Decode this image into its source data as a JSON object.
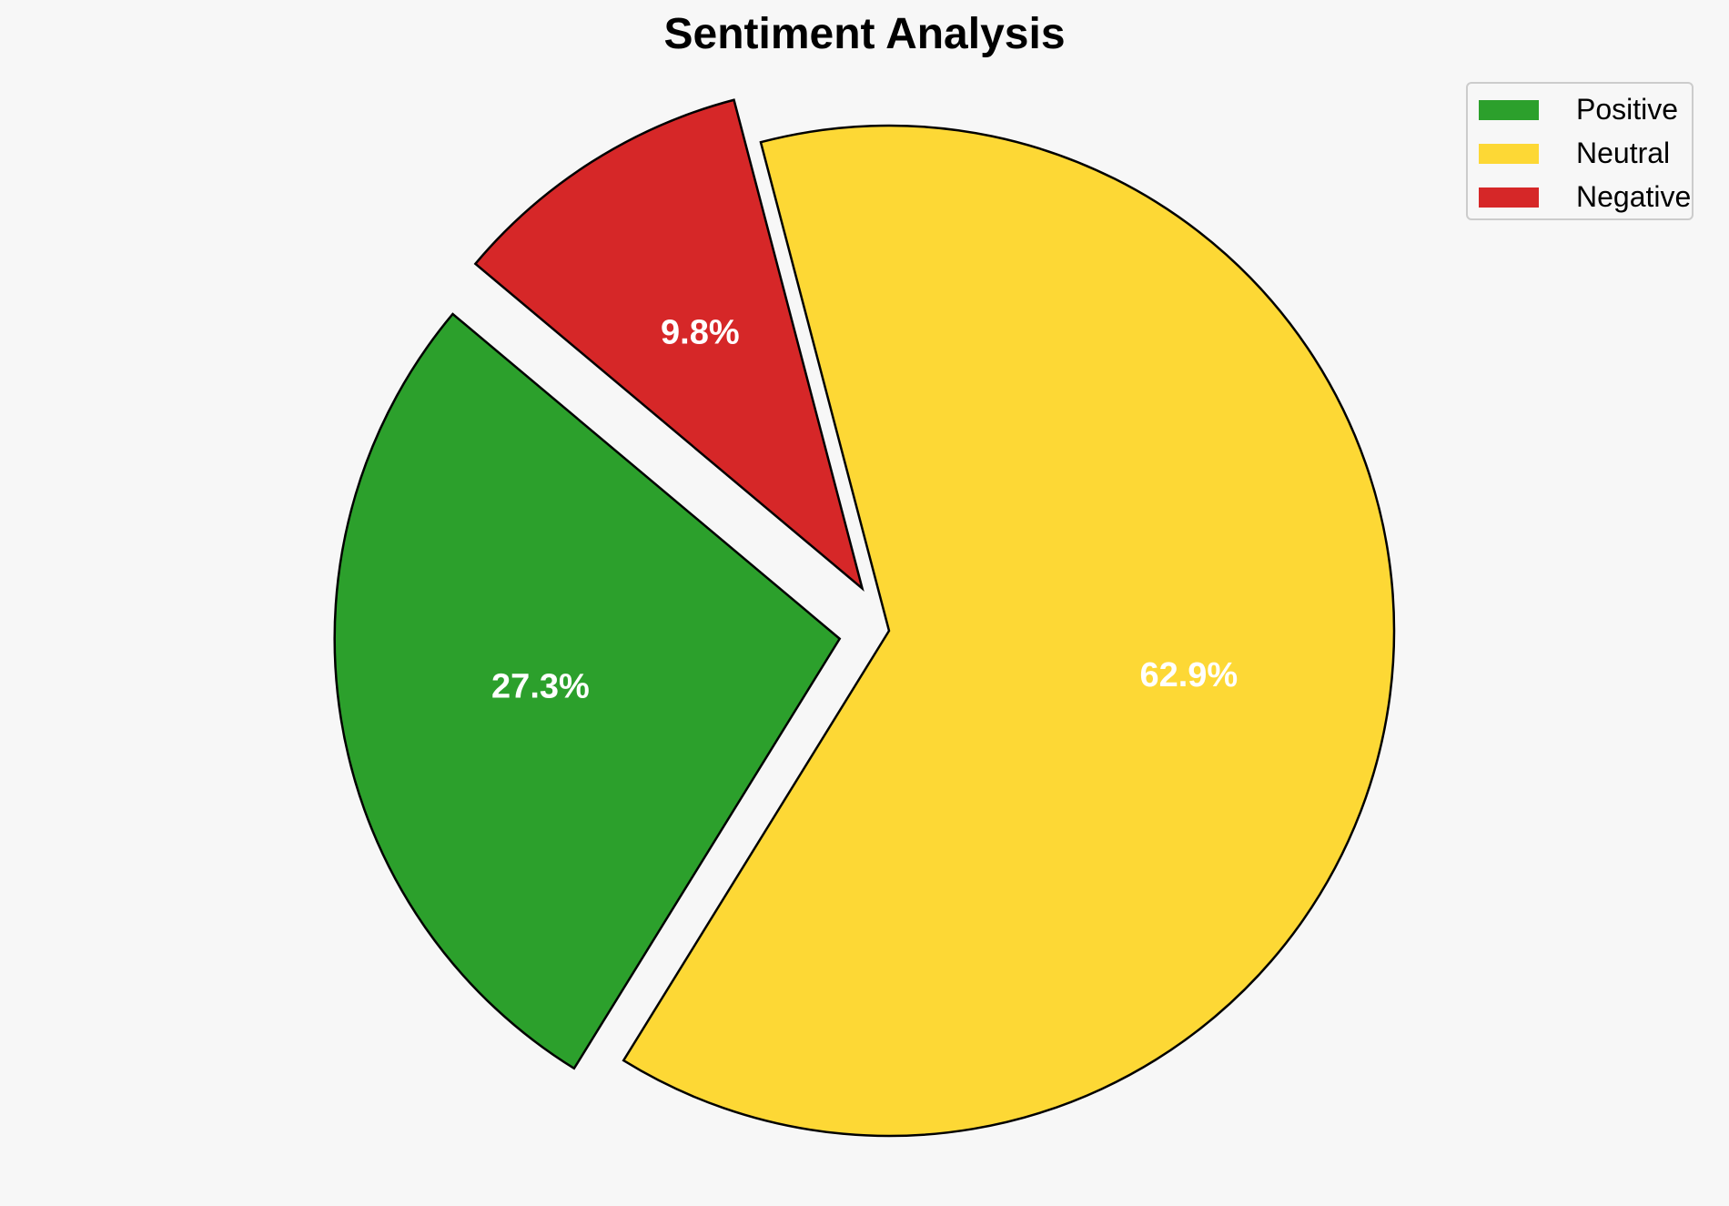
{
  "chart_data": {
    "type": "pie",
    "title": "Sentiment Analysis",
    "categories": [
      "Positive",
      "Neutral",
      "Negative"
    ],
    "values": [
      27.3,
      62.9,
      9.8
    ],
    "labels": [
      "27.3%",
      "62.9%",
      "9.8%"
    ],
    "colors": [
      "#2ca02c",
      "#fdd835",
      "#d62728"
    ],
    "exploded": [
      true,
      false,
      true
    ],
    "edge_color": "#000000",
    "legend": {
      "placement": "top-right",
      "entries": [
        "Positive",
        "Neutral",
        "Negative"
      ]
    }
  }
}
